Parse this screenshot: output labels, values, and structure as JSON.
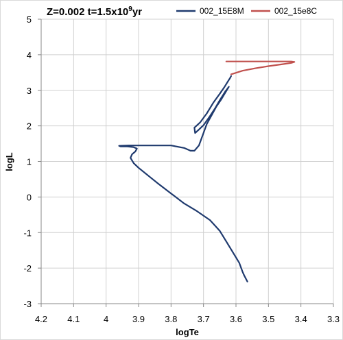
{
  "chart_data": {
    "type": "line",
    "title": {
      "prefix": "Z=0.002 t=1.5x10",
      "superscript": "9",
      "suffix": "yr"
    },
    "xlabel": "logTe",
    "ylabel": "logL",
    "xlim": [
      4.2,
      3.3
    ],
    "ylim": [
      -3,
      5
    ],
    "xticks": [
      "4.2",
      "4.1",
      "4",
      "3.9",
      "3.8",
      "3.7",
      "3.6",
      "3.5",
      "3.4",
      "3.3"
    ],
    "yticks": [
      "-3",
      "-2",
      "-1",
      "0",
      "1",
      "2",
      "3",
      "4",
      "5"
    ],
    "grid": true,
    "legend_position": "top",
    "series": [
      {
        "name": "002_15E8M",
        "color": "#1f3a6e",
        "x": [
          3.565,
          3.575,
          3.58,
          3.59,
          3.61,
          3.63,
          3.65,
          3.665,
          3.68,
          3.72,
          3.76,
          3.8,
          3.84,
          3.87,
          3.9,
          3.915,
          3.925,
          3.92,
          3.91,
          3.905,
          3.915,
          3.935,
          3.955,
          3.96,
          3.93,
          3.89,
          3.85,
          3.8,
          3.76,
          3.74,
          3.728,
          3.714,
          3.702,
          3.69,
          3.675,
          3.66,
          3.645,
          3.632,
          3.622,
          3.634,
          3.648,
          3.664,
          3.682,
          3.7,
          3.716,
          3.726,
          3.728,
          3.71,
          3.69,
          3.67,
          3.65,
          3.635,
          3.625,
          3.618,
          3.615
        ],
        "y": [
          -2.38,
          -2.2,
          -2.1,
          -1.85,
          -1.55,
          -1.25,
          -0.95,
          -0.8,
          -0.65,
          -0.4,
          -0.18,
          0.1,
          0.38,
          0.6,
          0.82,
          0.95,
          1.1,
          1.2,
          1.28,
          1.36,
          1.4,
          1.42,
          1.42,
          1.44,
          1.45,
          1.45,
          1.45,
          1.45,
          1.38,
          1.3,
          1.3,
          1.45,
          1.75,
          2.05,
          2.3,
          2.55,
          2.75,
          2.95,
          3.1,
          2.95,
          2.75,
          2.5,
          2.25,
          2.02,
          1.88,
          1.8,
          1.95,
          2.1,
          2.35,
          2.65,
          2.9,
          3.1,
          3.25,
          3.35,
          3.4
        ]
      },
      {
        "name": "002_15e8C",
        "color": "#c0504d",
        "x": [
          3.615,
          3.58,
          3.54,
          3.5,
          3.46,
          3.43,
          3.42,
          3.43,
          3.47,
          3.53,
          3.58,
          3.61,
          3.63
        ],
        "y": [
          3.45,
          3.55,
          3.62,
          3.68,
          3.73,
          3.77,
          3.8,
          3.81,
          3.81,
          3.81,
          3.81,
          3.81,
          3.81
        ]
      }
    ]
  }
}
